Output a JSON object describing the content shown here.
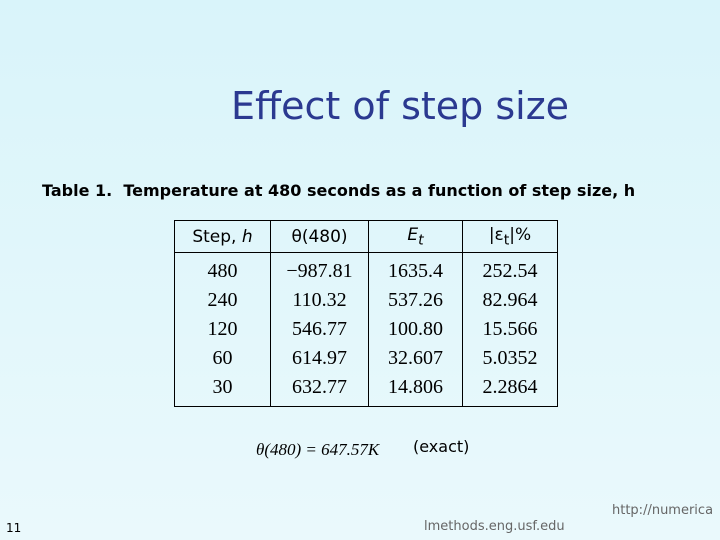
{
  "slide": {
    "title": "Effect of step size",
    "caption": "Table 1.  Temperature at 480 seconds as a function of step size, h",
    "table": {
      "headers": [
        [
          "Step, ",
          "h"
        ],
        [
          "θ(480)"
        ],
        [
          "E",
          "t"
        ],
        [
          "|ε",
          "t",
          "|%"
        ]
      ],
      "rows": [
        [
          "480",
          "−987.81",
          "1635.4",
          "252.54"
        ],
        [
          "240",
          "110.32",
          "537.26",
          "82.964"
        ],
        [
          "120",
          "546.77",
          "100.80",
          "15.566"
        ],
        [
          "60",
          "614.97",
          "32.607",
          "5.0352"
        ],
        [
          "30",
          "632.77",
          "14.806",
          "2.2864"
        ]
      ]
    },
    "equation": "θ(480) = 647.57K",
    "equation_note": "(exact)",
    "page_number": "11",
    "footer_url_left": "lmethods.eng.usf.edu",
    "footer_url_right": "http://numerica"
  }
}
